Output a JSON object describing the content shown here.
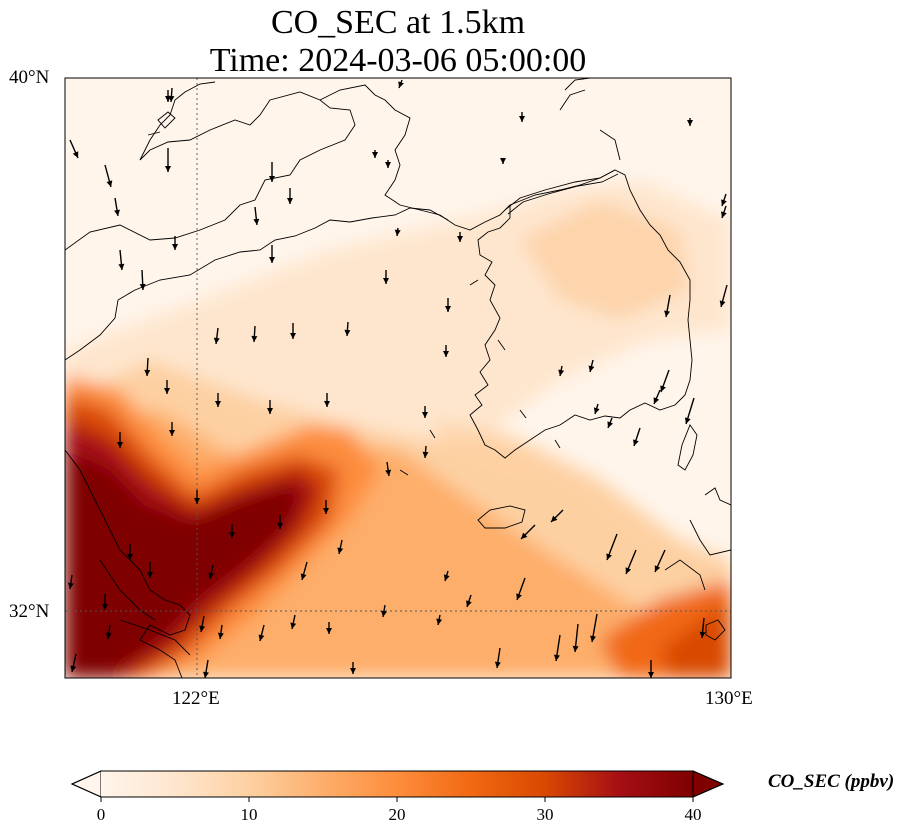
{
  "title": {
    "line1": "CO_SEC at 1.5km",
    "line2": "Time: 2024-03-06 05:00:00"
  },
  "map": {
    "extent": {
      "lon": [
        119,
        130
      ],
      "lat": [
        31,
        40
      ]
    },
    "lat_ticks": [
      {
        "value": 40,
        "label": "40°N"
      },
      {
        "value": 32,
        "label": "32°N"
      }
    ],
    "lon_ticks": [
      {
        "value": 122,
        "label": "122°E"
      },
      {
        "value": 130,
        "label": "130°E"
      }
    ],
    "gridlines": {
      "lon": [
        122
      ],
      "lat": [
        32
      ],
      "style": "dotted"
    },
    "field": "CO_SEC concentration (high over eastern China / Yellow Sea coast, band extending NE toward Korea, low over north)",
    "wind_vectors": "southward / south-westward flow"
  },
  "colorbar": {
    "label": "CO_SEC (ppbv)",
    "range": [
      0,
      40
    ],
    "ticks": [
      {
        "value": 0,
        "label": "0"
      },
      {
        "value": 10,
        "label": "10"
      },
      {
        "value": 20,
        "label": "20"
      },
      {
        "value": 30,
        "label": "30"
      },
      {
        "value": 40,
        "label": "40"
      }
    ],
    "colormap": [
      "#fff5eb",
      "#fee6ce",
      "#fdd0a2",
      "#fdae6b",
      "#fd8d3c",
      "#f16913",
      "#d94801",
      "#a50f15",
      "#7f0000"
    ],
    "extend": "both"
  }
}
